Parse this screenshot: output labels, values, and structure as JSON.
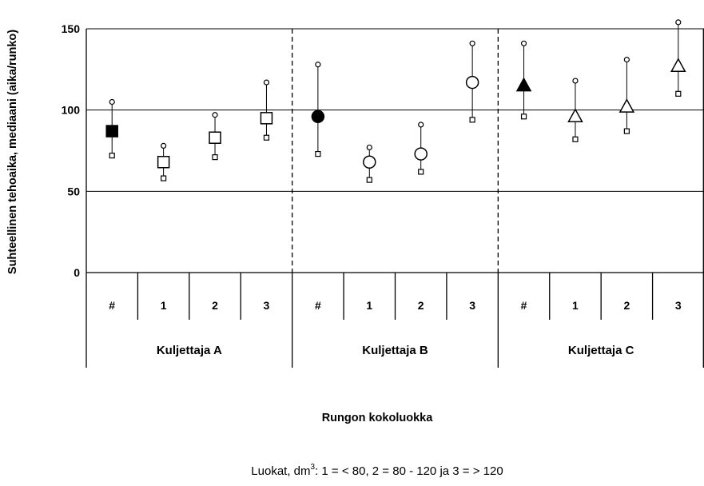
{
  "chart_data": {
    "type": "scatter",
    "title": "",
    "ylabel": "Suhteellinen tehoaika, mediaani (aika/runko)",
    "xlabel": "Rungon kokoluokka",
    "footnote": {
      "prefix": "Luokat, dm",
      "superscript": "3",
      "suffix": ": 1 = < 80, 2 = 80 - 120  ja  3 = > 120"
    },
    "ylim": [
      0,
      150
    ],
    "yticks": [
      "0",
      "50",
      "100",
      "150"
    ],
    "gridlines": [
      50,
      100,
      150
    ],
    "groups": [
      {
        "label": "Kuljettaja A",
        "marker": "square",
        "categories": [
          {
            "label": "#",
            "median": 87,
            "high": 105,
            "low": 72,
            "filled": true
          },
          {
            "label": "1",
            "median": 68,
            "high": 78,
            "low": 58,
            "filled": false
          },
          {
            "label": "2",
            "median": 83,
            "high": 97,
            "low": 71,
            "filled": false
          },
          {
            "label": "3",
            "median": 95,
            "high": 117,
            "low": 83,
            "filled": false
          }
        ]
      },
      {
        "label": "Kuljettaja B",
        "marker": "circle",
        "categories": [
          {
            "label": "#",
            "median": 96,
            "high": 128,
            "low": 73,
            "filled": true
          },
          {
            "label": "1",
            "median": 68,
            "high": 77,
            "low": 57,
            "filled": false
          },
          {
            "label": "2",
            "median": 73,
            "high": 91,
            "low": 62,
            "filled": false
          },
          {
            "label": "3",
            "median": 117,
            "high": 141,
            "low": 94,
            "filled": false
          }
        ]
      },
      {
        "label": "Kuljettaja C",
        "marker": "triangle",
        "categories": [
          {
            "label": "#",
            "median": 115,
            "high": 141,
            "low": 96,
            "filled": true
          },
          {
            "label": "1",
            "median": 96,
            "high": 118,
            "low": 82,
            "filled": false
          },
          {
            "label": "2",
            "median": 102,
            "high": 131,
            "low": 87,
            "filled": false
          },
          {
            "label": "3",
            "median": 127,
            "high": 154,
            "low": 110,
            "filled": false
          }
        ]
      }
    ]
  }
}
